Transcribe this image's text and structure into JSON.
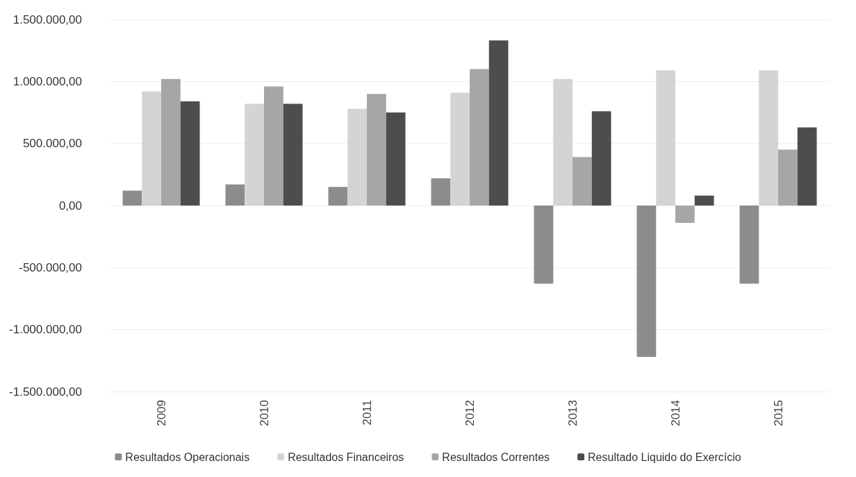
{
  "chart_data": {
    "type": "bar",
    "categories": [
      "2009",
      "2010",
      "2011",
      "2012",
      "2013",
      "2014",
      "2015"
    ],
    "series": [
      {
        "name": "Resultados Operacionais",
        "color": "#8c8c8c",
        "values": [
          120000,
          170000,
          150000,
          220000,
          -630000,
          -1220000,
          -630000
        ]
      },
      {
        "name": "Resultados Financeiros",
        "color": "#d4d4d4",
        "values": [
          920000,
          820000,
          780000,
          910000,
          1020000,
          1090000,
          1090000
        ]
      },
      {
        "name": "Resultados Correntes",
        "color": "#a6a6a6",
        "values": [
          1020000,
          960000,
          900000,
          1100000,
          390000,
          -140000,
          450000
        ]
      },
      {
        "name": "Resultado Liquido do Exercício",
        "color": "#4d4d4d",
        "values": [
          840000,
          820000,
          750000,
          1330000,
          760000,
          80000,
          630000
        ]
      }
    ],
    "ylim": [
      -1500000,
      1500000
    ],
    "yticks": [
      {
        "value": -1500000,
        "label": "-1.500.000,00"
      },
      {
        "value": -1000000,
        "label": "-1.000.000,00"
      },
      {
        "value": -500000,
        "label": "-500.000,00"
      },
      {
        "value": 0,
        "label": "0,00"
      },
      {
        "value": 500000,
        "label": "500.000,00"
      },
      {
        "value": 1000000,
        "label": "1.000.000,00"
      },
      {
        "value": 1500000,
        "label": "1.500.000,00"
      }
    ],
    "grid": true,
    "legend": "bottom"
  }
}
